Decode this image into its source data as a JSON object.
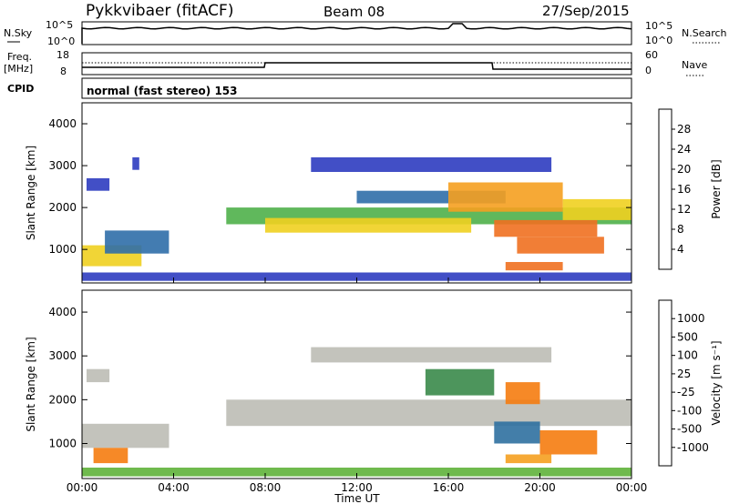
{
  "header": {
    "radar": "Pykkvibaer (fitACF)",
    "beam": "Beam 08",
    "date": "27/Sep/2015"
  },
  "noise_panel": {
    "left_label": "N.Sky",
    "right_label": "N.Search",
    "left_ticks": [
      "10^5",
      "10^0"
    ],
    "right_ticks": [
      "10^5",
      "10^0"
    ]
  },
  "freq_panel": {
    "left_label": "Freq.",
    "left_unit": "[MHz]",
    "right_label": "Nave",
    "left_ticks": [
      "18",
      "8"
    ],
    "right_ticks": [
      "60",
      "0"
    ]
  },
  "cpid": {
    "label": "CPID",
    "value": "normal (fast stereo) 153"
  },
  "colors": {
    "power_scale": [
      "#1a1aff",
      "#2d3cc0",
      "#2f6ea8",
      "#3d8a4a",
      "#4fb04a",
      "#9ccf3c",
      "#f0d020",
      "#f5a020",
      "#f07020",
      "#ff1010"
    ],
    "velocity_scale": [
      "#2040c0",
      "#2f70a0",
      "#3a8a4a",
      "#5fb23a",
      "#bdbdb5",
      "#f5a020",
      "#f57c10",
      "#ff2000"
    ],
    "ground_scatter": "#bdbdb5"
  },
  "chart_data": [
    {
      "type": "heatmap",
      "name": "power",
      "ylabel": "Slant Range [km]",
      "ylim": [
        200,
        4500
      ],
      "yticks": [
        "1000",
        "2000",
        "3000",
        "4000"
      ],
      "xticks": [
        "00:00",
        "04:00",
        "08:00",
        "12:00",
        "16:00",
        "20:00",
        "00:00"
      ],
      "colorbar": {
        "title": "Power [dB]",
        "ticks": [
          "28",
          "24",
          "20",
          "16",
          "12",
          "8",
          "4"
        ]
      },
      "bands": [
        {
          "t0": 0.0,
          "t1": 2.6,
          "r0": 600,
          "r1": 1100,
          "level": 6
        },
        {
          "t0": 1.0,
          "t1": 3.8,
          "r0": 900,
          "r1": 1450,
          "level": 2
        },
        {
          "t0": 0.2,
          "t1": 1.2,
          "r0": 2400,
          "r1": 2700,
          "level": 1
        },
        {
          "t0": 2.2,
          "t1": 2.5,
          "r0": 2900,
          "r1": 3200,
          "level": 1
        },
        {
          "t0": 6.3,
          "t1": 24.0,
          "r0": 1600,
          "r1": 2000,
          "level": 4
        },
        {
          "t0": 8.0,
          "t1": 17.0,
          "r0": 1400,
          "r1": 1750,
          "level": 6
        },
        {
          "t0": 12.0,
          "t1": 18.5,
          "r0": 2100,
          "r1": 2400,
          "level": 2
        },
        {
          "t0": 10.0,
          "t1": 20.5,
          "r0": 2850,
          "r1": 3200,
          "level": 1
        },
        {
          "t0": 16.0,
          "t1": 21.0,
          "r0": 1900,
          "r1": 2600,
          "level": 7
        },
        {
          "t0": 18.0,
          "t1": 22.5,
          "r0": 1300,
          "r1": 1700,
          "level": 8
        },
        {
          "t0": 19.0,
          "t1": 22.8,
          "r0": 900,
          "r1": 1300,
          "level": 8
        },
        {
          "t0": 21.0,
          "t1": 24.0,
          "r0": 1700,
          "r1": 2200,
          "level": 6
        },
        {
          "t0": 18.5,
          "t1": 21.0,
          "r0": 500,
          "r1": 700,
          "level": 8
        },
        {
          "t0": 0.0,
          "t1": 24.0,
          "r0": 250,
          "r1": 450,
          "level": 1
        }
      ]
    },
    {
      "type": "heatmap",
      "name": "velocity",
      "ylabel": "Slant Range [km]",
      "xlabel": "Time UT",
      "ylim": [
        200,
        4500
      ],
      "yticks": [
        "1000",
        "2000",
        "3000",
        "4000"
      ],
      "xticks": [
        "00:00",
        "04:00",
        "08:00",
        "12:00",
        "16:00",
        "20:00",
        "00:00"
      ],
      "colorbar": {
        "title": "Velocity [m s⁻¹]",
        "ticks": [
          "1000",
          "500",
          "100",
          "25",
          "-25",
          "-100",
          "-500",
          "-1000"
        ]
      },
      "bands": [
        {
          "t0": 0.0,
          "t1": 3.8,
          "r0": 900,
          "r1": 1450,
          "level": 4
        },
        {
          "t0": 0.5,
          "t1": 2.0,
          "r0": 550,
          "r1": 900,
          "level": 6
        },
        {
          "t0": 0.2,
          "t1": 1.2,
          "r0": 2400,
          "r1": 2700,
          "level": 4
        },
        {
          "t0": 6.3,
          "t1": 24.0,
          "r0": 1400,
          "r1": 2000,
          "level": 4
        },
        {
          "t0": 10.0,
          "t1": 20.5,
          "r0": 2850,
          "r1": 3200,
          "level": 4
        },
        {
          "t0": 15.0,
          "t1": 18.0,
          "r0": 2100,
          "r1": 2700,
          "level": 2
        },
        {
          "t0": 18.5,
          "t1": 20.0,
          "r0": 1900,
          "r1": 2400,
          "level": 6
        },
        {
          "t0": 18.0,
          "t1": 20.0,
          "r0": 1000,
          "r1": 1500,
          "level": 1
        },
        {
          "t0": 20.0,
          "t1": 22.5,
          "r0": 750,
          "r1": 1300,
          "level": 6
        },
        {
          "t0": 18.5,
          "t1": 20.5,
          "r0": 550,
          "r1": 750,
          "level": 5
        },
        {
          "t0": 0.0,
          "t1": 24.0,
          "r0": 250,
          "r1": 450,
          "level": 3
        }
      ]
    }
  ]
}
